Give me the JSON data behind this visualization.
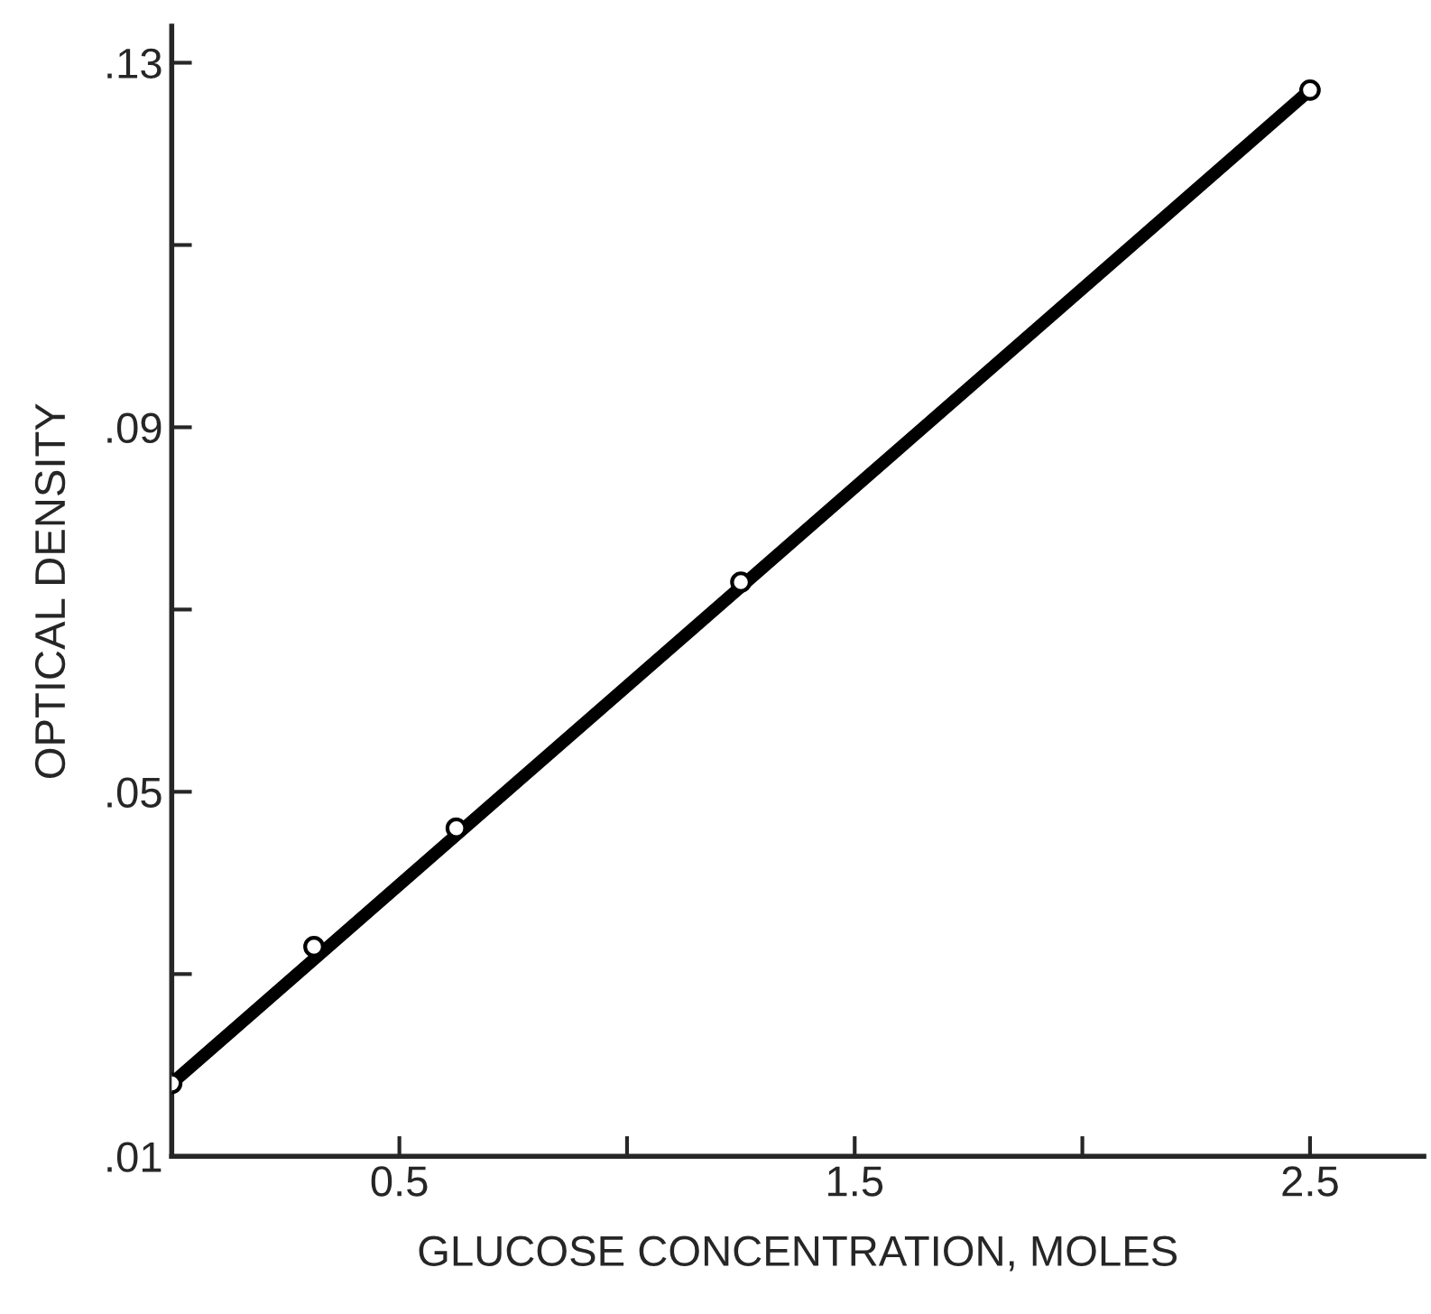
{
  "chart_data": {
    "type": "scatter",
    "xlabel": "GLUCOSE CONCENTRATION, MOLES",
    "ylabel": "OPTICAL DENSITY",
    "x": [
      0,
      0.3125,
      0.625,
      1.25,
      2.5
    ],
    "series": [
      {
        "color": "#000000",
        "marker": "circle",
        "values": [
          0.018,
          0.033,
          0.046,
          0.073,
          0.127
        ]
      },
      {
        "type": "line",
        "color": "#000000",
        "line_style": "solid",
        "x": [
          0,
          2.5
        ],
        "values": [
          0.018,
          0.127
        ]
      }
    ],
    "xlim": [
      0,
      2.75
    ],
    "ylim": [
      0.01,
      0.134
    ],
    "xticks": [
      {
        "value": 0.5,
        "label": "0.5"
      },
      {
        "value": 1,
        "label": null
      },
      {
        "value": 1.5,
        "label": "1.5"
      },
      {
        "value": 2,
        "label": null
      },
      {
        "value": 2.5,
        "label": "2.5"
      }
    ],
    "yticks": [
      {
        "value": 0.01,
        "label": ".01"
      },
      {
        "value": 0.03,
        "label": null
      },
      {
        "value": 0.05,
        "label": ".05"
      },
      {
        "value": 0.07,
        "label": null
      },
      {
        "value": 0.09,
        "label": ".09"
      },
      {
        "value": 0.11,
        "label": null
      },
      {
        "value": 0.13,
        "label": ".13"
      }
    ],
    "grid": false,
    "legend": false
  }
}
